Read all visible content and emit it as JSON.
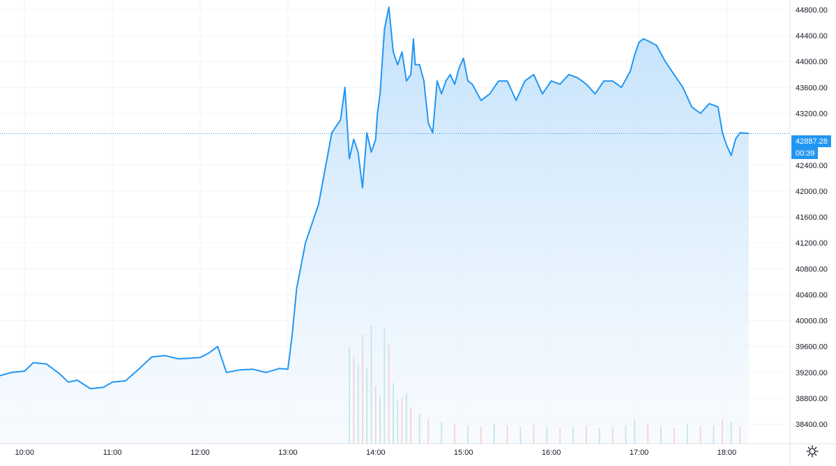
{
  "chart_data": {
    "type": "area",
    "grid": true,
    "colors": {
      "line": "#2196f3",
      "area_top": "#bbdefb",
      "area_bottom": "#f4f9fe",
      "volume_up": "#26a69a",
      "volume_down": "#ef5350",
      "grid": "#f0f3fa",
      "price_tag": "#2196f3"
    },
    "ylim": [
      38100,
      44950
    ],
    "x_range_hours": [
      9.72,
      18.72
    ],
    "x_tick_labels": [
      {
        "x": 10,
        "label": "10:00"
      },
      {
        "x": 11,
        "label": "11:00"
      },
      {
        "x": 12,
        "label": "12:00"
      },
      {
        "x": 13,
        "label": "13:00"
      },
      {
        "x": 14,
        "label": "14:00"
      },
      {
        "x": 15,
        "label": "15:00"
      },
      {
        "x": 16,
        "label": "16:00"
      },
      {
        "x": 17,
        "label": "17:00"
      },
      {
        "x": 18,
        "label": "18:00"
      }
    ],
    "y_tick_labels": [
      {
        "y": 38400,
        "label": "38400.00"
      },
      {
        "y": 38800,
        "label": "38800.00"
      },
      {
        "y": 39200,
        "label": "39200.00"
      },
      {
        "y": 39600,
        "label": "39600.00"
      },
      {
        "y": 40000,
        "label": "40000.00"
      },
      {
        "y": 40400,
        "label": "40400.00"
      },
      {
        "y": 40800,
        "label": "40800.00"
      },
      {
        "y": 41200,
        "label": "41200.00"
      },
      {
        "y": 41600,
        "label": "41600.00"
      },
      {
        "y": 42000,
        "label": "42000.00"
      },
      {
        "y": 42400,
        "label": "42400.00"
      },
      {
        "y": 43200,
        "label": "43200.00"
      },
      {
        "y": 43600,
        "label": "43600.00"
      },
      {
        "y": 44000,
        "label": "44000.00"
      },
      {
        "y": 44400,
        "label": "44400.00"
      },
      {
        "y": 44800,
        "label": "44800.00"
      }
    ],
    "last_price": {
      "value": 42887.28,
      "label": "42887.28",
      "countdown": "00:39"
    },
    "series": [
      {
        "values_x": [
          9.72,
          9.85,
          10.0,
          10.1,
          10.25,
          10.38,
          10.5,
          10.6,
          10.75,
          10.9,
          11.0,
          11.15,
          11.3,
          11.45,
          11.6,
          11.75,
          11.9,
          12.0,
          12.1,
          12.2,
          12.3,
          12.45,
          12.6,
          12.75,
          12.9,
          13.0,
          13.05,
          13.1,
          13.2,
          13.35,
          13.5,
          13.6,
          13.65,
          13.7,
          13.75,
          13.8,
          13.85,
          13.9,
          13.95,
          14.0,
          14.02,
          14.05,
          14.1,
          14.15,
          14.2,
          14.25,
          14.3,
          14.35,
          14.4,
          14.43,
          14.45,
          14.5,
          14.55,
          14.6,
          14.65,
          14.7,
          14.75,
          14.8,
          14.85,
          14.9,
          14.95,
          15.0,
          15.05,
          15.1,
          15.2,
          15.3,
          15.4,
          15.5,
          15.6,
          15.7,
          15.8,
          15.9,
          16.0,
          16.1,
          16.2,
          16.3,
          16.4,
          16.5,
          16.6,
          16.7,
          16.8,
          16.9,
          16.95,
          17.0,
          17.05,
          17.1,
          17.2,
          17.3,
          17.4,
          17.5,
          17.6,
          17.7,
          17.8,
          17.9,
          17.95,
          18.0,
          18.05,
          18.1,
          18.15,
          18.25
        ],
        "values_y": [
          39150,
          39200,
          39220,
          39350,
          39330,
          39200,
          39050,
          39080,
          38950,
          38970,
          39050,
          39070,
          39250,
          39440,
          39460,
          39410,
          39420,
          39430,
          39500,
          39600,
          39200,
          39240,
          39250,
          39200,
          39260,
          39250,
          39800,
          40500,
          41200,
          41800,
          42900,
          43100,
          43600,
          42500,
          42800,
          42600,
          42050,
          42900,
          42600,
          42800,
          43200,
          43500,
          44500,
          44840,
          44150,
          43950,
          44150,
          43700,
          43800,
          44350,
          43950,
          43950,
          43700,
          43050,
          42900,
          43700,
          43500,
          43700,
          43800,
          43650,
          43900,
          44050,
          43700,
          43650,
          43400,
          43500,
          43700,
          43700,
          43400,
          43700,
          43800,
          43500,
          43700,
          43650,
          43800,
          43750,
          43650,
          43500,
          43700,
          43700,
          43600,
          43850,
          44100,
          44300,
          44350,
          44320,
          44250,
          44000,
          43800,
          43600,
          43300,
          43200,
          43350,
          43300,
          42900,
          42700,
          42550,
          42800,
          42900,
          42890
        ]
      }
    ],
    "volume": [
      {
        "x": 13.7,
        "v": 800,
        "up": true
      },
      {
        "x": 13.75,
        "v": 720,
        "up": false
      },
      {
        "x": 13.8,
        "v": 650,
        "up": true
      },
      {
        "x": 13.85,
        "v": 900,
        "up": false
      },
      {
        "x": 13.9,
        "v": 620,
        "up": true
      },
      {
        "x": 13.95,
        "v": 980,
        "up": true
      },
      {
        "x": 14.0,
        "v": 480,
        "up": false
      },
      {
        "x": 14.05,
        "v": 400,
        "up": true
      },
      {
        "x": 14.1,
        "v": 950,
        "up": true
      },
      {
        "x": 14.15,
        "v": 820,
        "up": false
      },
      {
        "x": 14.2,
        "v": 500,
        "up": true
      },
      {
        "x": 14.25,
        "v": 360,
        "up": true
      },
      {
        "x": 14.3,
        "v": 380,
        "up": false
      },
      {
        "x": 14.35,
        "v": 420,
        "up": true
      },
      {
        "x": 14.4,
        "v": 300,
        "up": false
      },
      {
        "x": 14.5,
        "v": 250,
        "up": true
      },
      {
        "x": 14.6,
        "v": 200,
        "up": false
      },
      {
        "x": 14.75,
        "v": 180,
        "up": true
      },
      {
        "x": 14.9,
        "v": 160,
        "up": false
      },
      {
        "x": 15.05,
        "v": 150,
        "up": true
      },
      {
        "x": 15.2,
        "v": 140,
        "up": false
      },
      {
        "x": 15.35,
        "v": 170,
        "up": true
      },
      {
        "x": 15.5,
        "v": 150,
        "up": false
      },
      {
        "x": 15.65,
        "v": 140,
        "up": true
      },
      {
        "x": 15.8,
        "v": 160,
        "up": false
      },
      {
        "x": 15.95,
        "v": 150,
        "up": true
      },
      {
        "x": 16.1,
        "v": 130,
        "up": false
      },
      {
        "x": 16.25,
        "v": 140,
        "up": true
      },
      {
        "x": 16.4,
        "v": 150,
        "up": false
      },
      {
        "x": 16.55,
        "v": 130,
        "up": true
      },
      {
        "x": 16.7,
        "v": 140,
        "up": false
      },
      {
        "x": 16.85,
        "v": 150,
        "up": true
      },
      {
        "x": 16.95,
        "v": 200,
        "up": true
      },
      {
        "x": 17.1,
        "v": 160,
        "up": false
      },
      {
        "x": 17.25,
        "v": 150,
        "up": true
      },
      {
        "x": 17.4,
        "v": 130,
        "up": false
      },
      {
        "x": 17.55,
        "v": 160,
        "up": true
      },
      {
        "x": 17.7,
        "v": 140,
        "up": false
      },
      {
        "x": 17.85,
        "v": 150,
        "up": true
      },
      {
        "x": 17.95,
        "v": 200,
        "up": false
      },
      {
        "x": 18.05,
        "v": 180,
        "up": true
      },
      {
        "x": 18.15,
        "v": 140,
        "up": false
      }
    ]
  }
}
